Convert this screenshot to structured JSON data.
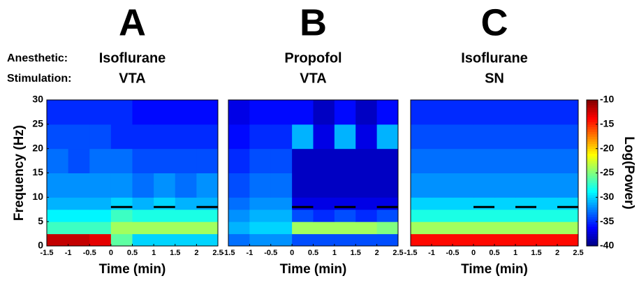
{
  "row_labels": {
    "anesthetic": "Anesthetic:",
    "stimulation": "Stimulation:"
  },
  "chart_data": [
    {
      "type": "heatmap",
      "title": "A",
      "anesthetic": "Isoflurane",
      "stimulation_site": "VTA",
      "xlabel": "Time (min)",
      "ylabel": "Frequency (Hz)",
      "x": [
        -1.5,
        -1,
        -0.5,
        0,
        0.5,
        1,
        1.5,
        2,
        2.5
      ],
      "y": [
        0,
        2.5,
        5,
        7.5,
        10,
        15,
        20,
        25,
        30
      ],
      "values": [
        [
          -12,
          -12,
          -13,
          -26,
          -30,
          -30,
          -30,
          -30
        ],
        [
          -27,
          -27,
          -27,
          -24,
          -24,
          -24,
          -24,
          -24
        ],
        [
          -29,
          -29,
          -29,
          -27,
          -28,
          -28,
          -28,
          -28
        ],
        [
          -31,
          -31,
          -31,
          -30,
          -31,
          -30,
          -31,
          -31
        ],
        [
          -32,
          -32,
          -32,
          -32,
          -33,
          -32,
          -33,
          -32
        ],
        [
          -33,
          -34,
          -33,
          -33,
          -34,
          -34,
          -34,
          -34
        ],
        [
          -34,
          -34,
          -34,
          -35,
          -35,
          -35,
          -35,
          -35
        ],
        [
          -35,
          -35,
          -35,
          -35,
          -36,
          -36,
          -36,
          -36
        ]
      ],
      "stimulation": [
        {
          "start": 0,
          "end": 0.5,
          "frequency": 8
        },
        {
          "start": 1,
          "end": 1.5,
          "frequency": 8
        },
        {
          "start": 2,
          "end": 2.5,
          "frequency": 8
        }
      ],
      "xlim": [
        -1.5,
        2.5
      ],
      "ylim": [
        0,
        30
      ],
      "xticks": [
        -1.5,
        -1,
        -0.5,
        0,
        0.5,
        1,
        1.5,
        2,
        2.5
      ],
      "yticks": [
        0,
        5,
        10,
        15,
        20,
        25,
        30
      ]
    },
    {
      "type": "heatmap",
      "title": "B",
      "anesthetic": "Propofol",
      "stimulation_site": "VTA",
      "xlabel": "Time (min)",
      "x": [
        -1.5,
        -1,
        -0.5,
        0,
        0.5,
        1,
        1.5,
        2,
        2.5
      ],
      "y": [
        0,
        2.5,
        5,
        7.5,
        10,
        15,
        20,
        25,
        30
      ],
      "values": [
        [
          -33,
          -32,
          -32,
          -34,
          -34,
          -34,
          -34,
          -34
        ],
        [
          -31,
          -30,
          -30,
          -24,
          -24,
          -24,
          -24,
          -25
        ],
        [
          -32,
          -31,
          -31,
          -34,
          -35,
          -34,
          -35,
          -34
        ],
        [
          -33,
          -32,
          -32,
          -37,
          -37,
          -37,
          -37,
          -37
        ],
        [
          -34,
          -33,
          -33,
          -38,
          -38,
          -38,
          -38,
          -38
        ],
        [
          -35,
          -34,
          -34,
          -38,
          -38,
          -38,
          -38,
          -38
        ],
        [
          -36,
          -35,
          -35,
          -31,
          -37,
          -31,
          -37,
          -31
        ],
        [
          -37,
          -36,
          -36,
          -36,
          -38,
          -36,
          -38,
          -36
        ]
      ],
      "stimulation": [
        {
          "start": 0,
          "end": 0.5,
          "frequency": 8
        },
        {
          "start": 1,
          "end": 1.5,
          "frequency": 8
        },
        {
          "start": 2,
          "end": 2.5,
          "frequency": 8
        }
      ],
      "xlim": [
        -1.5,
        2.5
      ],
      "ylim": [
        0,
        30
      ],
      "xticks": [
        -1.5,
        -1,
        -0.5,
        0,
        0.5,
        1,
        1.5,
        2,
        2.5
      ]
    },
    {
      "type": "heatmap",
      "title": "C",
      "anesthetic": "Isoflurane",
      "stimulation_site": "SN",
      "xlabel": "Time (min)",
      "x": [
        -1.5,
        -1,
        -0.5,
        0,
        0.5,
        1,
        1.5,
        2,
        2.5
      ],
      "y": [
        0,
        2.5,
        5,
        7.5,
        10,
        15,
        20,
        25,
        30
      ],
      "values": [
        [
          -14,
          -14,
          -14,
          -14,
          -14,
          -14,
          -14,
          -14
        ],
        [
          -24,
          -24,
          -24,
          -24,
          -24,
          -24,
          -24,
          -24
        ],
        [
          -28,
          -28,
          -28,
          -28,
          -28,
          -28,
          -28,
          -28
        ],
        [
          -30,
          -30,
          -30,
          -30,
          -30,
          -30,
          -30,
          -30
        ],
        [
          -32,
          -32,
          -32,
          -32,
          -32,
          -32,
          -32,
          -32
        ],
        [
          -33,
          -33,
          -33,
          -33,
          -33,
          -33,
          -33,
          -33
        ],
        [
          -34,
          -34,
          -34,
          -34,
          -34,
          -34,
          -34,
          -34
        ],
        [
          -35,
          -35,
          -35,
          -35,
          -35,
          -35,
          -35,
          -35
        ]
      ],
      "stimulation": [
        {
          "start": 0,
          "end": 0.5,
          "frequency": 8
        },
        {
          "start": 1,
          "end": 1.5,
          "frequency": 8
        },
        {
          "start": 2,
          "end": 2.5,
          "frequency": 8
        }
      ],
      "xlim": [
        -1.5,
        2.5
      ],
      "ylim": [
        0,
        30
      ],
      "xticks": [
        -1.5,
        -1,
        -0.5,
        0,
        0.5,
        1,
        1.5,
        2,
        2.5
      ]
    }
  ],
  "colorbar": {
    "label": "Log(Power)",
    "lim": [
      -40,
      -10
    ],
    "ticks": [
      -10,
      -15,
      -20,
      -25,
      -30,
      -35,
      -40
    ]
  }
}
